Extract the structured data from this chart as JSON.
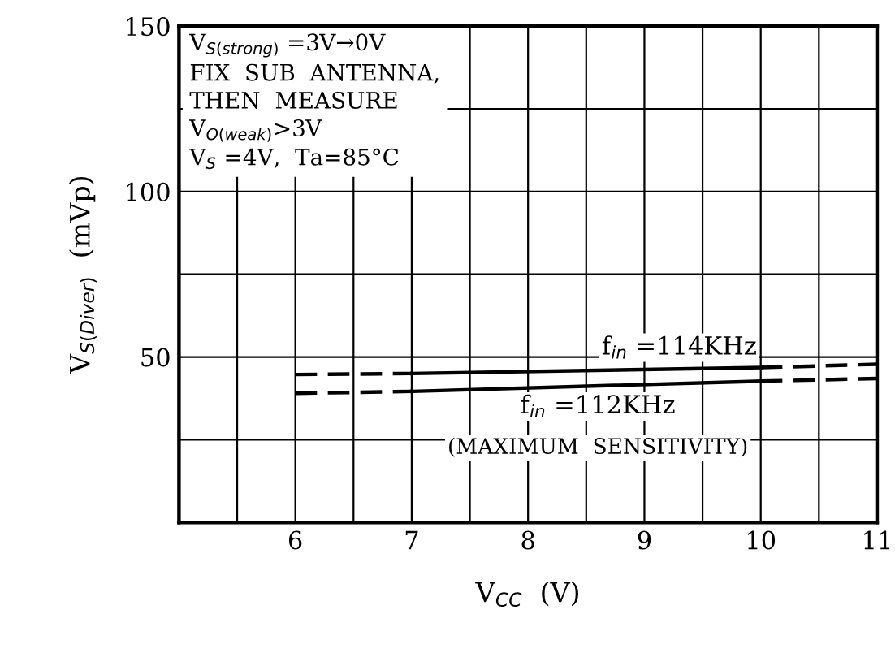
{
  "chart_data": {
    "type": "line",
    "xlabel": "V$_{CC}$  (V)",
    "ylabel": "V$_{S(Diver)}$  (mVp)",
    "series": [
      {
        "name": "f$_{in}$ =114KHz",
        "color": "#000000",
        "line_style": "solid",
        "x": [
          7,
          10
        ],
        "values": [
          45,
          46.8
        ]
      },
      {
        "color": "#000000",
        "line_style": "dashed",
        "x": [
          6,
          7,
          8,
          10,
          11
        ],
        "values": [
          44.7,
          45,
          null,
          46.8,
          47.8
        ]
      },
      {
        "name": "f$_{in}$ =112KHz",
        "color": "#000000",
        "line_style": "solid",
        "x": [
          7,
          10
        ],
        "values": [
          39.6,
          42.7
        ]
      },
      {
        "color": "#000000",
        "line_style": "dashed",
        "x": [
          6,
          7,
          8,
          10,
          11
        ],
        "values": [
          39,
          39.6,
          null,
          42.7,
          43.5
        ]
      }
    ],
    "annotations": [
      "V$_{S(strong)}$ =3V→0V\nFIX  SUB  ANTENNA,\nTHEN  MEASURE\nV$_{O(weak)}$>3V\nV$_{S}$ =4V,  Ta=85°C",
      "(MAXIMUM  SENSITIVITY)"
    ],
    "xlim": [
      5,
      11
    ],
    "ylim": [
      0,
      150
    ],
    "xticks": [
      {
        "value": 5.5,
        "label": null
      },
      6,
      {
        "value": 6.5,
        "label": null
      },
      7,
      {
        "value": 7.5,
        "label": null
      },
      8,
      {
        "value": 8.5,
        "label": null
      },
      9,
      {
        "value": 9.5,
        "label": null
      },
      10,
      {
        "value": 10.5,
        "label": null
      },
      11
    ],
    "yticks": [
      {
        "value": 25,
        "label": null
      },
      50,
      {
        "value": 75,
        "label": null
      },
      100,
      {
        "value": 125,
        "label": null
      },
      150
    ],
    "grid": true,
    "marker": "none"
  }
}
